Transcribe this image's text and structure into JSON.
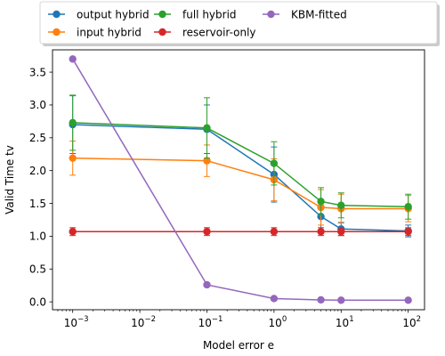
{
  "chart_data": {
    "type": "line",
    "xscale": "log",
    "xlabel": "Model error e",
    "ylabel": "Valid Time tv",
    "xlim": [
      0.0005,
      175
    ],
    "ylim": [
      -0.12,
      3.84
    ],
    "x": [
      0.001,
      0.1,
      1,
      5,
      10,
      100
    ],
    "x_ticks": [
      0.001,
      0.01,
      0.1,
      1,
      10,
      100
    ],
    "x_tick_labels": [
      {
        "base": "10",
        "exp": "−3"
      },
      {
        "base": "10",
        "exp": "−2"
      },
      {
        "base": "10",
        "exp": "−1"
      },
      {
        "base": "10",
        "exp": "0"
      },
      {
        "base": "10",
        "exp": "1"
      },
      {
        "base": "10",
        "exp": "2"
      }
    ],
    "y_ticks": [
      0.0,
      0.5,
      1.0,
      1.5,
      2.0,
      2.5,
      3.0,
      3.5
    ],
    "y_tick_labels": [
      "0.0",
      "0.5",
      "1.0",
      "1.5",
      "2.0",
      "2.5",
      "3.0",
      "3.5"
    ],
    "grid": false,
    "legend_placement": "top-center",
    "series": [
      {
        "name": "output hybrid",
        "color": "#1f77b4",
        "values": [
          2.7,
          2.63,
          1.94,
          1.3,
          1.11,
          1.08
        ],
        "err": [
          0.44,
          0.37,
          0.42,
          0.22,
          0.1,
          0.09
        ]
      },
      {
        "name": "input hybrid",
        "color": "#ff7f0e",
        "values": [
          2.19,
          2.15,
          1.86,
          1.44,
          1.42,
          1.42
        ],
        "err": [
          0.26,
          0.24,
          0.32,
          0.27,
          0.22,
          0.2
        ]
      },
      {
        "name": "full hybrid",
        "color": "#2ca02c",
        "values": [
          2.73,
          2.65,
          2.11,
          1.53,
          1.47,
          1.45
        ],
        "err": [
          0.42,
          0.46,
          0.33,
          0.21,
          0.19,
          0.19
        ]
      },
      {
        "name": "reservoir-only",
        "color": "#d62728",
        "values": [
          1.07,
          1.07,
          1.07,
          1.07,
          1.07,
          1.07
        ],
        "err": [
          0.06,
          0.06,
          0.06,
          0.06,
          0.06,
          0.06
        ]
      },
      {
        "name": "KBM-fitted",
        "color": "#9467bd",
        "values": [
          3.7,
          0.26,
          0.05,
          0.03,
          0.025,
          0.025
        ],
        "err": [
          0,
          0,
          0,
          0,
          0,
          0
        ]
      }
    ]
  }
}
